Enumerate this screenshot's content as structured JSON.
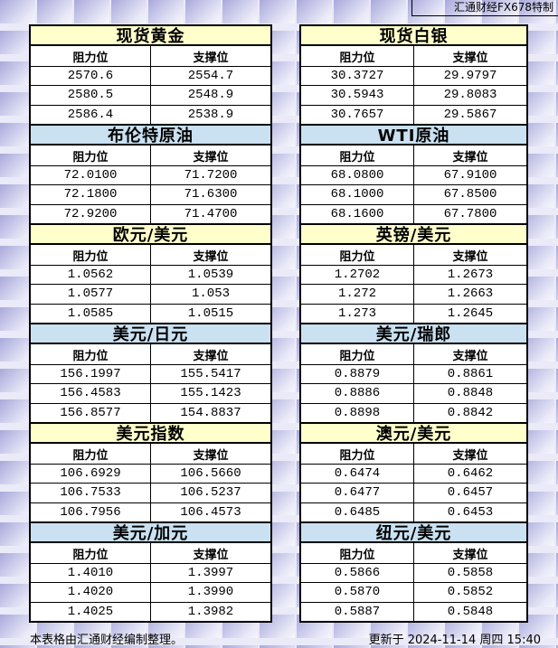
{
  "header": {
    "brand": "汇通财经FX678特制"
  },
  "labels": {
    "resistance": "阻力位",
    "support": "支撑位"
  },
  "colors": {
    "yellow_header": "#FFFFCC",
    "blue_header": "#C9E1F1",
    "cell_bg": "#FFFFFF",
    "table_border": "#000000",
    "background": "#E9E9F7",
    "tile_accent": "#A9A9DB"
  },
  "bands": [
    {
      "theme": "yellow",
      "left": {
        "title": "现货黄金",
        "rows": [
          [
            "2570.6",
            "2554.7"
          ],
          [
            "2580.5",
            "2548.9"
          ],
          [
            "2586.4",
            "2538.9"
          ]
        ]
      },
      "right": {
        "title": "现货白银",
        "rows": [
          [
            "30.3727",
            "29.9797"
          ],
          [
            "30.5943",
            "29.8083"
          ],
          [
            "30.7657",
            "29.5867"
          ]
        ]
      }
    },
    {
      "theme": "blue",
      "left": {
        "title": "布伦特原油",
        "rows": [
          [
            "72.0100",
            "71.7200"
          ],
          [
            "72.1800",
            "71.6300"
          ],
          [
            "72.9200",
            "71.4700"
          ]
        ]
      },
      "right": {
        "title": "WTI原油",
        "rows": [
          [
            "68.0800",
            "67.9100"
          ],
          [
            "68.1000",
            "67.8500"
          ],
          [
            "68.1600",
            "67.7800"
          ]
        ]
      }
    },
    {
      "theme": "yellow",
      "left": {
        "title": "欧元/美元",
        "rows": [
          [
            "1.0562",
            "1.0539"
          ],
          [
            "1.0577",
            "1.053"
          ],
          [
            "1.0585",
            "1.0515"
          ]
        ]
      },
      "right": {
        "title": "英镑/美元",
        "rows": [
          [
            "1.2702",
            "1.2673"
          ],
          [
            "1.272",
            "1.2663"
          ],
          [
            "1.273",
            "1.2645"
          ]
        ]
      }
    },
    {
      "theme": "blue",
      "left": {
        "title": "美元/日元",
        "rows": [
          [
            "156.1997",
            "155.5417"
          ],
          [
            "156.4583",
            "155.1423"
          ],
          [
            "156.8577",
            "154.8837"
          ]
        ]
      },
      "right": {
        "title": "美元/瑞郎",
        "rows": [
          [
            "0.8879",
            "0.8861"
          ],
          [
            "0.8886",
            "0.8848"
          ],
          [
            "0.8898",
            "0.8842"
          ]
        ]
      }
    },
    {
      "theme": "yellow",
      "left": {
        "title": "美元指数",
        "rows": [
          [
            "106.6929",
            "106.5660"
          ],
          [
            "106.7533",
            "106.5237"
          ],
          [
            "106.7956",
            "106.4573"
          ]
        ]
      },
      "right": {
        "title": "澳元/美元",
        "rows": [
          [
            "0.6474",
            "0.6462"
          ],
          [
            "0.6477",
            "0.6457"
          ],
          [
            "0.6485",
            "0.6453"
          ]
        ]
      }
    },
    {
      "theme": "blue",
      "left": {
        "title": "美元/加元",
        "rows": [
          [
            "1.4010",
            "1.3997"
          ],
          [
            "1.4020",
            "1.3990"
          ],
          [
            "1.4025",
            "1.3982"
          ]
        ]
      },
      "right": {
        "title": "纽元/美元",
        "rows": [
          [
            "0.5866",
            "0.5858"
          ],
          [
            "0.5870",
            "0.5852"
          ],
          [
            "0.5887",
            "0.5848"
          ]
        ]
      }
    }
  ],
  "footer": {
    "credit": "本表格由汇通财经编制整理。",
    "updated": "更新于 2024-11-14 周四 15:40"
  }
}
